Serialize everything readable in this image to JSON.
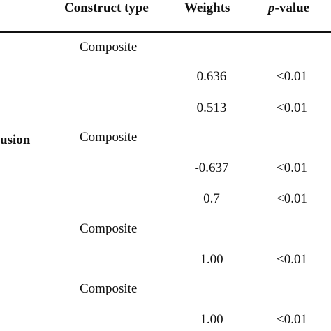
{
  "table": {
    "headers": {
      "construct_type": "Construct type",
      "weights": "Weights",
      "p_prefix": "p",
      "p_suffix": "-value"
    },
    "row_label": "usion",
    "rows": [
      {
        "construct_type": "Composite",
        "weight": "",
        "p_value": ""
      },
      {
        "construct_type": "",
        "weight": "0.636",
        "p_value": "<0.01"
      },
      {
        "construct_type": "",
        "weight": "0.513",
        "p_value": "<0.01"
      },
      {
        "construct_type": "Composite",
        "weight": "",
        "p_value": ""
      },
      {
        "construct_type": "",
        "weight": "-0.637",
        "p_value": "<0.01"
      },
      {
        "construct_type": "",
        "weight": "0.7",
        "p_value": "<0.01"
      },
      {
        "construct_type": "Composite",
        "weight": "",
        "p_value": ""
      },
      {
        "construct_type": "",
        "weight": "1.00",
        "p_value": "<0.01"
      },
      {
        "construct_type": "Composite",
        "weight": "",
        "p_value": ""
      },
      {
        "construct_type": "",
        "weight": "1.00",
        "p_value": "<0.01"
      }
    ]
  }
}
